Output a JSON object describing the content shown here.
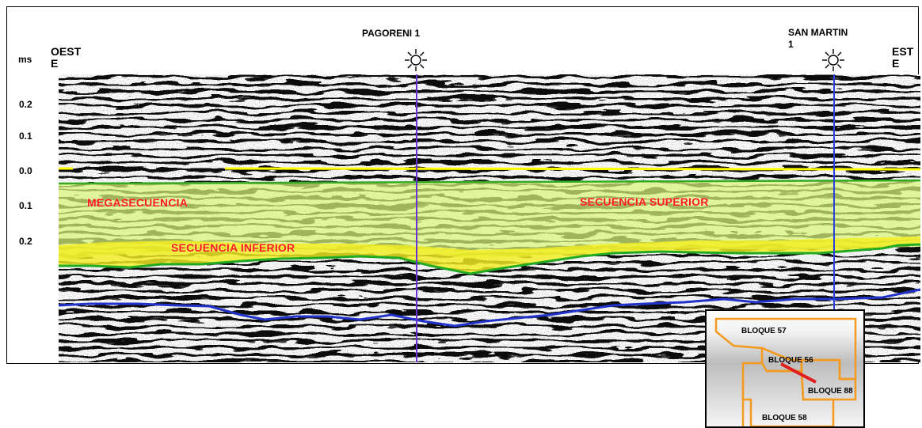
{
  "directions": {
    "west": "OESTE",
    "east": "ESTE"
  },
  "unit": "ms",
  "wells": [
    {
      "name": "PAGORENI 1",
      "color": "#6a2fd6"
    },
    {
      "name": "SAN MARTIN 1",
      "color": "#2a3fe0"
    }
  ],
  "time_ticks": [
    "0.2",
    "0.1",
    "0.0",
    "0.1",
    "0.2"
  ],
  "sequences": {
    "mega": "MEGASECUENCIA",
    "upper": "SECUENCIA SUPERIOR",
    "lower": "SECUENCIA INFERIOR"
  },
  "horizon_colors": {
    "datum": "#ffff00",
    "top": "#33aa22",
    "base": "#2233cc",
    "upper_fill": "#d8f57a",
    "lower_fill": "#f3ee22"
  },
  "map_inset": {
    "blocks": [
      "BLOQUE 57",
      "BLOQUE 56",
      "BLOQUE 88",
      "BLOQUE 58"
    ],
    "outline_color": "#f39a1f",
    "line_color": "#e02020"
  }
}
